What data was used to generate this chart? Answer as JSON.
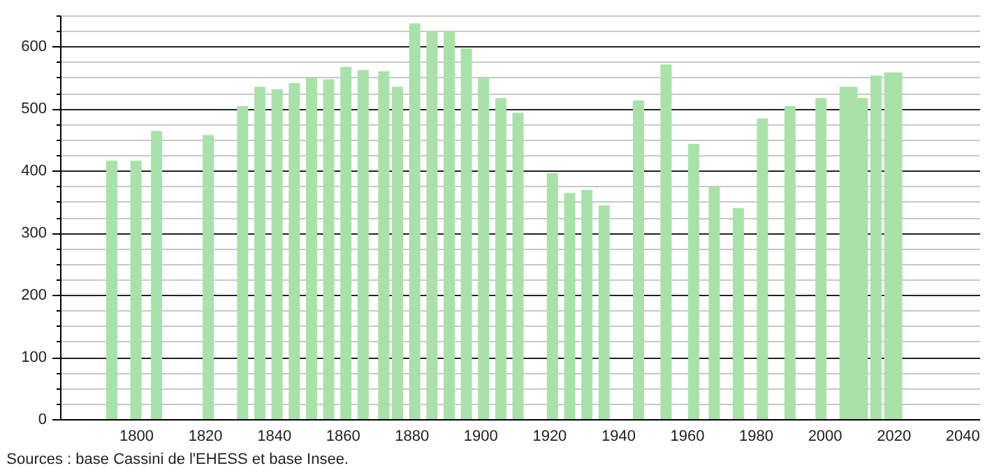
{
  "chart_data": {
    "type": "bar",
    "x": [
      1793,
      1800,
      1806,
      1821,
      1831,
      1836,
      1841,
      1846,
      1851,
      1856,
      1861,
      1866,
      1872,
      1876,
      1881,
      1886,
      1891,
      1896,
      1901,
      1906,
      1911,
      1921,
      1926,
      1931,
      1936,
      1946,
      1954,
      1962,
      1968,
      1975,
      1982,
      1990,
      1999,
      2006,
      2008,
      2011,
      2015,
      2019,
      2021
    ],
    "values": [
      416,
      416,
      464,
      457,
      504,
      535,
      531,
      541,
      550,
      547,
      567,
      562,
      560,
      535,
      637,
      625,
      625,
      597,
      550,
      517,
      493,
      396,
      364,
      369,
      344,
      513,
      571,
      443,
      375,
      340,
      484,
      504,
      517,
      535,
      535,
      517,
      553,
      558,
      558
    ],
    "color": "#a8e2a8",
    "xlim": [
      1780,
      2043
    ],
    "xticks": [
      1800,
      1820,
      1840,
      1860,
      1880,
      1900,
      1920,
      1940,
      1960,
      1980,
      2000,
      2020,
      2040
    ],
    "ylim": [
      0,
      650
    ],
    "yticks": [
      0,
      {
        "value": 25,
        "label": null
      },
      {
        "value": 50,
        "label": null
      },
      {
        "value": 75,
        "label": null
      },
      100,
      {
        "value": 125,
        "label": null
      },
      {
        "value": 150,
        "label": null
      },
      {
        "value": 175,
        "label": null
      },
      200,
      {
        "value": 225,
        "label": null
      },
      {
        "value": 250,
        "label": null
      },
      {
        "value": 275,
        "label": null
      },
      300,
      {
        "value": 325,
        "label": null
      },
      {
        "value": 350,
        "label": null
      },
      {
        "value": 375,
        "label": null
      },
      400,
      {
        "value": 425,
        "label": null
      },
      {
        "value": 450,
        "label": null
      },
      {
        "value": 475,
        "label": null
      },
      500,
      {
        "value": 525,
        "label": null
      },
      {
        "value": 550,
        "label": null
      },
      {
        "value": 575,
        "label": null
      },
      600,
      {
        "value": 625,
        "label": null
      },
      {
        "value": 650,
        "label": null
      }
    ],
    "grid": "y",
    "annotations": [
      "Sources : base Cassini de l'EHESS et base Insee."
    ]
  }
}
